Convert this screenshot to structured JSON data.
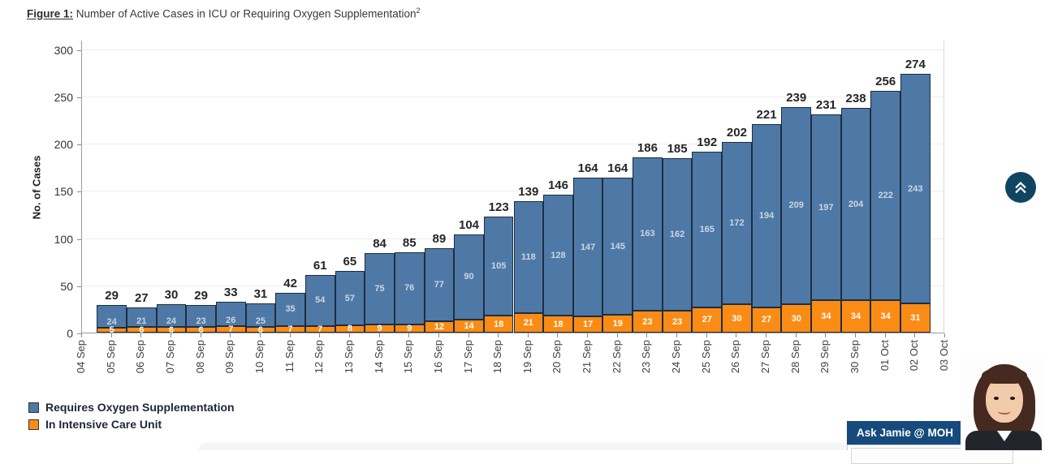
{
  "figure": {
    "label": "Figure 1:",
    "title": " Number of Active Cases in ICU or Requiring Oxygen Supplementation",
    "superscript": "2"
  },
  "chart_data": {
    "type": "bar",
    "stacked": true,
    "title": "Number of Active Cases in ICU or Requiring Oxygen Supplementation",
    "ylabel": "No. of Cases",
    "y_ticks": [
      0,
      50,
      100,
      150,
      200,
      250,
      300
    ],
    "ylim": [
      0,
      310
    ],
    "grid": "horizontal",
    "legend_position": "bottom-left",
    "axis_tick_labels": [
      "04 Sep",
      "05 Sep",
      "06 Sep",
      "07 Sep",
      "08 Sep",
      "09 Sep",
      "10 Sep",
      "11 Sep",
      "12 Sep",
      "13 Sep",
      "14 Sep",
      "15 Sep",
      "16 Sep",
      "17 Sep",
      "18 Sep",
      "19 Sep",
      "20 Sep",
      "21 Sep",
      "22 Sep",
      "23 Sep",
      "24 Sep",
      "25 Sep",
      "26 Sep",
      "27 Sep",
      "28 Sep",
      "29 Sep",
      "30 Sep",
      "01 Oct",
      "02 Oct",
      "03 Oct"
    ],
    "categories": [
      "05 Sep",
      "06 Sep",
      "07 Sep",
      "08 Sep",
      "09 Sep",
      "10 Sep",
      "11 Sep",
      "12 Sep",
      "13 Sep",
      "14 Sep",
      "15 Sep",
      "16 Sep",
      "17 Sep",
      "18 Sep",
      "19 Sep",
      "20 Sep",
      "21 Sep",
      "22 Sep",
      "23 Sep",
      "24 Sep",
      "25 Sep",
      "26 Sep",
      "27 Sep",
      "28 Sep",
      "29 Sep",
      "30 Sep",
      "01 Oct",
      "02 Oct"
    ],
    "series": [
      {
        "name": "Requires Oxygen Supplementation",
        "color": "#4E79A7",
        "label_color": "#CDD5E0",
        "values": [
          24,
          21,
          24,
          23,
          26,
          25,
          35,
          54,
          57,
          75,
          76,
          77,
          90,
          105,
          118,
          128,
          147,
          145,
          163,
          162,
          165,
          172,
          194,
          209,
          197,
          204,
          222,
          243
        ]
      },
      {
        "name": "In Intensive Care Unit",
        "color": "#FA8C16",
        "label_color": "#FFFFFF",
        "values": [
          5,
          6,
          6,
          6,
          7,
          6,
          7,
          7,
          8,
          9,
          9,
          12,
          14,
          18,
          21,
          18,
          17,
          19,
          23,
          23,
          27,
          30,
          27,
          30,
          34,
          34,
          34,
          31
        ]
      }
    ],
    "totals": [
      29,
      27,
      30,
      29,
      33,
      31,
      42,
      61,
      65,
      84,
      85,
      89,
      104,
      123,
      139,
      146,
      164,
      164,
      186,
      185,
      192,
      202,
      221,
      239,
      231,
      238,
      256,
      274
    ]
  },
  "chat_widget": {
    "header": "Ask Jamie @ MOH",
    "header_bg": "#174A7C"
  },
  "scroll_top": {
    "icon": "double-chevron-up",
    "bg": "#0F4560"
  }
}
